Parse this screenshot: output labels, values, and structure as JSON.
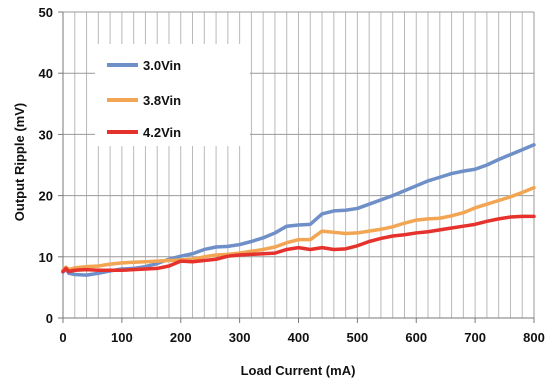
{
  "chart_data": {
    "type": "line",
    "title": "",
    "xlabel": "Load Current (mA)",
    "ylabel": "Output Ripple (mV)",
    "xlim": [
      0,
      800
    ],
    "ylim": [
      0,
      50
    ],
    "x_ticks": [
      0,
      100,
      200,
      300,
      400,
      500,
      600,
      700,
      800
    ],
    "y_ticks": [
      0,
      10,
      20,
      30,
      40,
      50
    ],
    "x_minor_grid_step": 20,
    "grid": true,
    "legend_position": "top-left",
    "series": [
      {
        "name": "3.0Vin",
        "color": "#6f8fc8",
        "points": [
          [
            0,
            7.5
          ],
          [
            5,
            8
          ],
          [
            10,
            7.3
          ],
          [
            20,
            7.1
          ],
          [
            40,
            7.0
          ],
          [
            60,
            7.3
          ],
          [
            80,
            7.7
          ],
          [
            100,
            8.0
          ],
          [
            120,
            8.1
          ],
          [
            140,
            8.4
          ],
          [
            160,
            8.9
          ],
          [
            180,
            9.6
          ],
          [
            200,
            10.1
          ],
          [
            220,
            10.5
          ],
          [
            240,
            11.2
          ],
          [
            260,
            11.6
          ],
          [
            280,
            11.7
          ],
          [
            300,
            12.0
          ],
          [
            320,
            12.5
          ],
          [
            340,
            13.1
          ],
          [
            360,
            13.9
          ],
          [
            380,
            15.0
          ],
          [
            400,
            15.2
          ],
          [
            420,
            15.3
          ],
          [
            440,
            17.0
          ],
          [
            460,
            17.5
          ],
          [
            480,
            17.6
          ],
          [
            500,
            17.9
          ],
          [
            520,
            18.6
          ],
          [
            540,
            19.3
          ],
          [
            560,
            20.0
          ],
          [
            580,
            20.8
          ],
          [
            600,
            21.6
          ],
          [
            620,
            22.4
          ],
          [
            640,
            23.0
          ],
          [
            660,
            23.6
          ],
          [
            680,
            24.0
          ],
          [
            700,
            24.3
          ],
          [
            720,
            25.0
          ],
          [
            740,
            25.9
          ],
          [
            760,
            26.7
          ],
          [
            780,
            27.5
          ],
          [
            800,
            28.3
          ]
        ]
      },
      {
        "name": "3.8Vin",
        "color": "#f2a553",
        "points": [
          [
            0,
            7.8
          ],
          [
            5,
            8.3
          ],
          [
            10,
            7.9
          ],
          [
            20,
            8.2
          ],
          [
            40,
            8.4
          ],
          [
            60,
            8.5
          ],
          [
            80,
            8.8
          ],
          [
            100,
            9.0
          ],
          [
            120,
            9.1
          ],
          [
            140,
            9.2
          ],
          [
            160,
            9.3
          ],
          [
            180,
            9.4
          ],
          [
            200,
            9.5
          ],
          [
            220,
            9.6
          ],
          [
            240,
            10.0
          ],
          [
            260,
            10.3
          ],
          [
            280,
            10.4
          ],
          [
            300,
            10.6
          ],
          [
            320,
            10.9
          ],
          [
            340,
            11.2
          ],
          [
            360,
            11.6
          ],
          [
            380,
            12.3
          ],
          [
            400,
            12.8
          ],
          [
            420,
            12.8
          ],
          [
            440,
            14.2
          ],
          [
            460,
            14.0
          ],
          [
            480,
            13.8
          ],
          [
            500,
            13.9
          ],
          [
            520,
            14.2
          ],
          [
            540,
            14.5
          ],
          [
            560,
            14.9
          ],
          [
            580,
            15.5
          ],
          [
            600,
            16.0
          ],
          [
            620,
            16.2
          ],
          [
            640,
            16.3
          ],
          [
            660,
            16.7
          ],
          [
            680,
            17.2
          ],
          [
            700,
            18.0
          ],
          [
            720,
            18.6
          ],
          [
            740,
            19.2
          ],
          [
            760,
            19.8
          ],
          [
            780,
            20.5
          ],
          [
            800,
            21.3
          ]
        ]
      },
      {
        "name": "4.2Vin",
        "color": "#e5322c",
        "points": [
          [
            0,
            7.6
          ],
          [
            5,
            8.1
          ],
          [
            10,
            7.6
          ],
          [
            20,
            7.8
          ],
          [
            40,
            7.9
          ],
          [
            60,
            7.8
          ],
          [
            80,
            7.8
          ],
          [
            100,
            7.8
          ],
          [
            120,
            7.9
          ],
          [
            140,
            8.0
          ],
          [
            160,
            8.1
          ],
          [
            180,
            8.5
          ],
          [
            200,
            9.3
          ],
          [
            220,
            9.2
          ],
          [
            240,
            9.4
          ],
          [
            260,
            9.6
          ],
          [
            280,
            10.1
          ],
          [
            300,
            10.3
          ],
          [
            320,
            10.4
          ],
          [
            340,
            10.5
          ],
          [
            360,
            10.6
          ],
          [
            380,
            11.2
          ],
          [
            400,
            11.5
          ],
          [
            420,
            11.2
          ],
          [
            440,
            11.5
          ],
          [
            460,
            11.2
          ],
          [
            480,
            11.3
          ],
          [
            500,
            11.8
          ],
          [
            520,
            12.5
          ],
          [
            540,
            13.0
          ],
          [
            560,
            13.4
          ],
          [
            580,
            13.6
          ],
          [
            600,
            13.9
          ],
          [
            620,
            14.1
          ],
          [
            640,
            14.4
          ],
          [
            660,
            14.7
          ],
          [
            680,
            15.0
          ],
          [
            700,
            15.3
          ],
          [
            720,
            15.8
          ],
          [
            740,
            16.2
          ],
          [
            760,
            16.5
          ],
          [
            780,
            16.6
          ],
          [
            800,
            16.6
          ]
        ]
      }
    ]
  }
}
